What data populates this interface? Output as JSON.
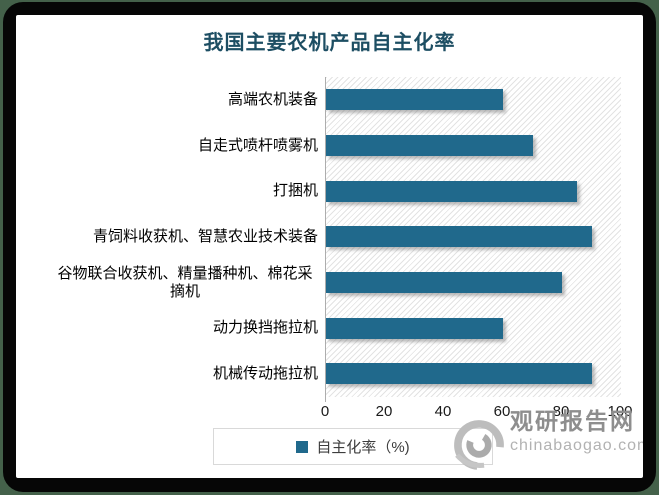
{
  "chart_data": {
    "type": "bar",
    "orientation": "horizontal",
    "title": "我国主要农机产品自主化率",
    "categories": [
      "高端农机装备",
      "自走式喷杆喷雾机",
      "打捆机",
      "青饲料收获机、智慧农业技术装备",
      "谷物联合收获机、精量播种机、棉花采摘机",
      "动力换挡拖拉机",
      "机械传动拖拉机"
    ],
    "values": [
      60,
      70,
      85,
      90,
      80,
      60,
      90
    ],
    "xlim": [
      0,
      100
    ],
    "xticks": [
      "0",
      "20",
      "40",
      "60",
      "80",
      "100"
    ],
    "legend": [
      "自主化率（%)"
    ],
    "legend_position": "bottom",
    "grid": "hatched-background",
    "xlabel": "",
    "ylabel": ""
  },
  "colors": {
    "bar": "#20698C",
    "title_text": "#1d4e63",
    "frame_border": "#060606",
    "backdrop_green": "#44614a",
    "watermark_gray": "#8e8e8e"
  },
  "watermark": {
    "brand": "观研报告网",
    "domain": "chinabaogao.com",
    "logo": "swirl-icon"
  }
}
